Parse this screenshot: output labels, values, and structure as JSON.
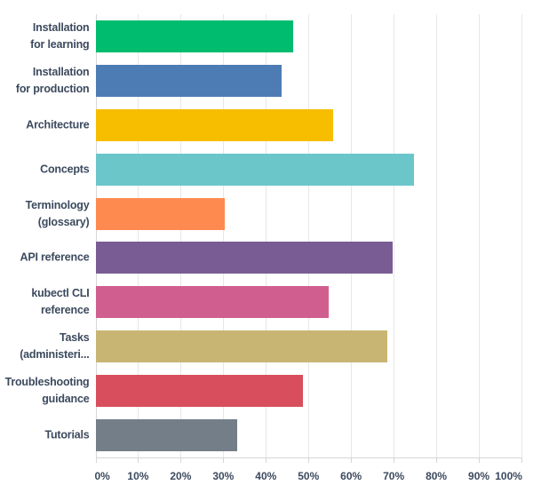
{
  "chart_data": {
    "type": "bar",
    "orientation": "horizontal",
    "title": "",
    "xlabel": "",
    "ylabel": "",
    "xlim": [
      0,
      100
    ],
    "x_tick_labels": [
      "0%",
      "10%",
      "20%",
      "30%",
      "40%",
      "50%",
      "60%",
      "70%",
      "80%",
      "90%",
      "100%"
    ],
    "grid": true,
    "legend": false,
    "categories": [
      "Installation for learning",
      "Installation for production",
      "Architecture",
      "Concepts",
      "Terminology (glossary)",
      "API reference",
      "kubectl CLI reference",
      "Tasks (administering...)",
      "Troubleshooting guidance",
      "Tutorials"
    ],
    "category_display_lines": [
      [
        "Installation",
        "for learning"
      ],
      [
        "Installation",
        "for production"
      ],
      [
        "Architecture"
      ],
      [
        "Concepts"
      ],
      [
        "Terminology",
        "(glossary)"
      ],
      [
        "API reference"
      ],
      [
        "kubectl CLI",
        "reference"
      ],
      [
        "Tasks",
        "(administeri..."
      ],
      [
        "Troubleshooting",
        "guidance"
      ],
      [
        "Tutorials"
      ]
    ],
    "values": [
      46.4,
      43.5,
      55.7,
      74.6,
      30.3,
      69.6,
      54.6,
      68.5,
      48.5,
      33.2
    ],
    "unit": "%",
    "bar_colors": [
      "#00bc6f",
      "#4d7cb5",
      "#f7be00",
      "#6bc6ca",
      "#ff8a50",
      "#7a5c94",
      "#d05f8f",
      "#c9b573",
      "#d94e5c",
      "#747e88"
    ]
  },
  "styles": {
    "background": "#ffffff",
    "text_color": "#3c4a5e",
    "grid_color": "#e7e7e7",
    "axis_color": "#d6d6d6"
  }
}
